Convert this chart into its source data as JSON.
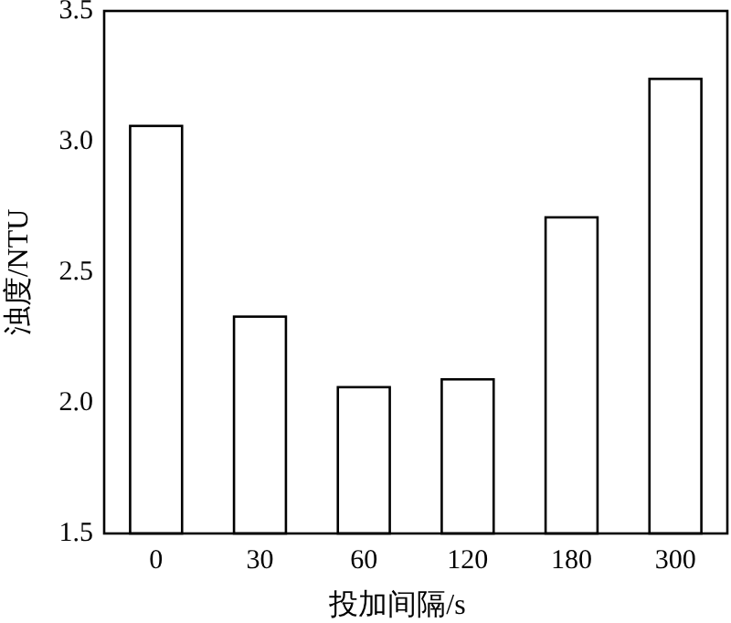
{
  "chart_data": {
    "type": "bar",
    "xlabel": "投加间隔/s",
    "ylabel": "浊度/NTU",
    "categories": [
      "0",
      "30",
      "60",
      "120",
      "180",
      "300"
    ],
    "values": [
      3.06,
      2.33,
      2.06,
      2.09,
      2.71,
      3.24
    ],
    "color": "#ffffff",
    "ylim": [
      1.5,
      3.5
    ],
    "yticks": [
      1.5,
      {
        "value": 2,
        "label": "2.0"
      },
      2.5,
      {
        "value": 3,
        "label": "3.0"
      },
      3.5
    ],
    "grid": false
  }
}
